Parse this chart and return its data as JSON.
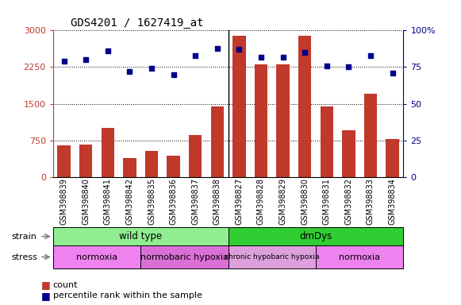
{
  "title": "GDS4201 / 1627419_at",
  "samples": [
    "GSM398839",
    "GSM398840",
    "GSM398841",
    "GSM398842",
    "GSM398835",
    "GSM398836",
    "GSM398837",
    "GSM398838",
    "GSM398827",
    "GSM398828",
    "GSM398829",
    "GSM398830",
    "GSM398831",
    "GSM398832",
    "GSM398833",
    "GSM398834"
  ],
  "counts": [
    650,
    660,
    1000,
    380,
    540,
    430,
    850,
    1450,
    2900,
    2300,
    2300,
    2900,
    1450,
    950,
    1700,
    780
  ],
  "percentile": [
    79,
    80,
    86,
    72,
    74,
    70,
    83,
    88,
    87,
    82,
    82,
    85,
    76,
    75,
    83,
    71
  ],
  "left_ylim": [
    0,
    3000
  ],
  "left_yticks": [
    0,
    750,
    1500,
    2250,
    3000
  ],
  "right_ylim": [
    0,
    100
  ],
  "right_yticks": [
    0,
    25,
    50,
    75,
    100
  ],
  "right_yticklabels": [
    "0",
    "25",
    "50",
    "75",
    "100%"
  ],
  "bar_color": "#c0392b",
  "dot_color": "#00008b",
  "strain_groups": [
    {
      "label": "wild type",
      "start": 0,
      "end": 8,
      "color": "#90ee90"
    },
    {
      "label": "dmDys",
      "start": 8,
      "end": 16,
      "color": "#32cd32"
    }
  ],
  "stress_groups": [
    {
      "label": "normoxia",
      "start": 0,
      "end": 4,
      "color": "#ee82ee"
    },
    {
      "label": "normobaric hypoxia",
      "start": 4,
      "end": 8,
      "color": "#da70d6"
    },
    {
      "label": "chronic hypobaric hypoxia",
      "start": 8,
      "end": 12,
      "color": "#dda0dd"
    },
    {
      "label": "normoxia",
      "start": 12,
      "end": 16,
      "color": "#ee82ee"
    }
  ],
  "legend_items": [
    {
      "label": "count",
      "color": "#c0392b"
    },
    {
      "label": "percentile rank within the sample",
      "color": "#00008b"
    }
  ],
  "bg_color": "#ffffff",
  "tick_label_fontsize": 7,
  "bar_width": 0.6
}
